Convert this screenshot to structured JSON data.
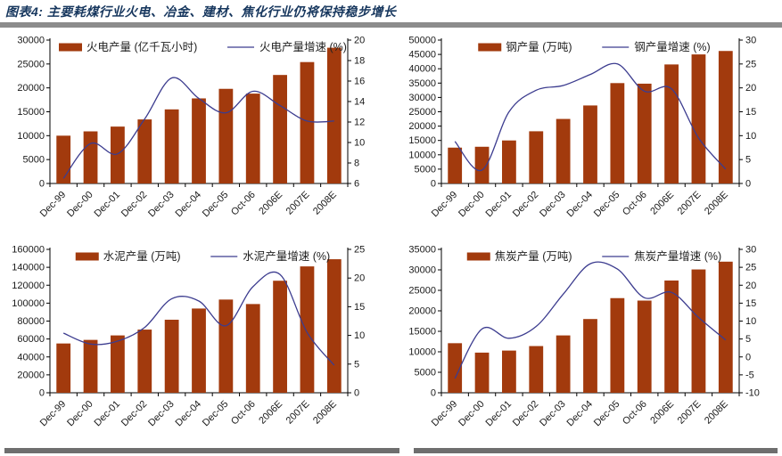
{
  "header": {
    "title": "图表4:  主要耗煤行业火电、冶金、建材、焦化行业仍将保持稳步增长"
  },
  "colors": {
    "bar": "#A23A0D",
    "line": "#3C3C8F",
    "title_text": "#17375E",
    "top_rule": "#8C8C8C",
    "bottom_rule": "#6E6E6E",
    "axis_text": "#1A1A1A",
    "axis_line": "#000000"
  },
  "chart_data": [
    {
      "type": "bar+line",
      "categories": [
        "Dec-99",
        "Dec-00",
        "Dec-01",
        "Dec-02",
        "Dec-03",
        "Dec-04",
        "Dec-05",
        "Oct-06",
        "2006E",
        "2007E",
        "2008E"
      ],
      "bar_series": {
        "name": "火电产量 (亿千瓦小时)",
        "axis": "left",
        "values": [
          10000,
          10900,
          11900,
          13400,
          15500,
          17800,
          19800,
          18800,
          22700,
          25400,
          28400
        ]
      },
      "line_series": {
        "name": "火电产量增速 (%)",
        "axis": "right",
        "values": [
          6.5,
          9.9,
          8.9,
          12.3,
          16.3,
          14.3,
          12.9,
          15.0,
          13.6,
          12.1,
          12.1
        ]
      },
      "left_axis": {
        "min": 0,
        "max": 30000,
        "step": 5000
      },
      "right_axis": {
        "min": 6,
        "max": 20,
        "step": 2
      },
      "legend_position": "top",
      "grid": false
    },
    {
      "type": "bar+line",
      "categories": [
        "Dec-99",
        "Dec-00",
        "Dec-01",
        "Dec-02",
        "Dec-03",
        "Dec-04",
        "Dec-05",
        "Oct-06",
        "2006E",
        "2007E",
        "2008E"
      ],
      "bar_series": {
        "name": "钢产量 (万吨)",
        "axis": "left",
        "values": [
          12500,
          12800,
          15000,
          18200,
          22500,
          27200,
          35000,
          34800,
          41500,
          45000,
          46200
        ]
      },
      "line_series": {
        "name": "钢产量增速 (%)",
        "axis": "right",
        "values": [
          8.8,
          2.8,
          15.0,
          19.5,
          20.5,
          22.8,
          25.0,
          19.3,
          19.8,
          9.5,
          3.0
        ]
      },
      "left_axis": {
        "min": 0,
        "max": 50000,
        "step": 5000
      },
      "right_axis": {
        "min": 0,
        "max": 30,
        "step": 5
      },
      "legend_position": "top",
      "grid": false
    },
    {
      "type": "bar+line",
      "categories": [
        "Dec-99",
        "Dec-00",
        "Dec-01",
        "Dec-02",
        "Dec-03",
        "Dec-04",
        "Dec-05",
        "Oct-06",
        "2006E",
        "2007E",
        "2008E"
      ],
      "bar_series": {
        "name": "水泥产量 (万吨)",
        "axis": "left",
        "values": [
          55000,
          59000,
          64000,
          70500,
          81500,
          94000,
          104000,
          99000,
          125000,
          141000,
          149000
        ]
      },
      "line_series": {
        "name": "水泥产量增速 (%)",
        "axis": "right",
        "values": [
          10.4,
          8.5,
          9.0,
          11.4,
          16.4,
          16.0,
          11.7,
          18.5,
          20.6,
          10.5,
          4.8
        ]
      },
      "left_axis": {
        "min": 0,
        "max": 160000,
        "step": 20000
      },
      "right_axis": {
        "min": 0,
        "max": 25,
        "step": 5
      },
      "legend_position": "top",
      "grid": false
    },
    {
      "type": "bar+line",
      "categories": [
        "Dec-99",
        "Dec-00",
        "Dec-01",
        "Dec-02",
        "Dec-03",
        "Dec-04",
        "Dec-05",
        "Oct-06",
        "2006E",
        "2007E",
        "2008E"
      ],
      "bar_series": {
        "name": "焦炭产量 (万吨)",
        "axis": "left",
        "values": [
          12100,
          9800,
          10300,
          11400,
          14000,
          18000,
          23100,
          22500,
          27400,
          30100,
          32000
        ]
      },
      "line_series": {
        "name": "焦炭产量增速 (%)",
        "axis": "right",
        "values": [
          -6.0,
          7.8,
          5.2,
          8.5,
          17.5,
          26.0,
          24.5,
          16.5,
          18.0,
          11.0,
          4.7
        ]
      },
      "left_axis": {
        "min": 0,
        "max": 35000,
        "step": 5000
      },
      "right_axis": {
        "min": -10,
        "max": 30,
        "step": 5
      },
      "legend_position": "top",
      "grid": false
    }
  ]
}
